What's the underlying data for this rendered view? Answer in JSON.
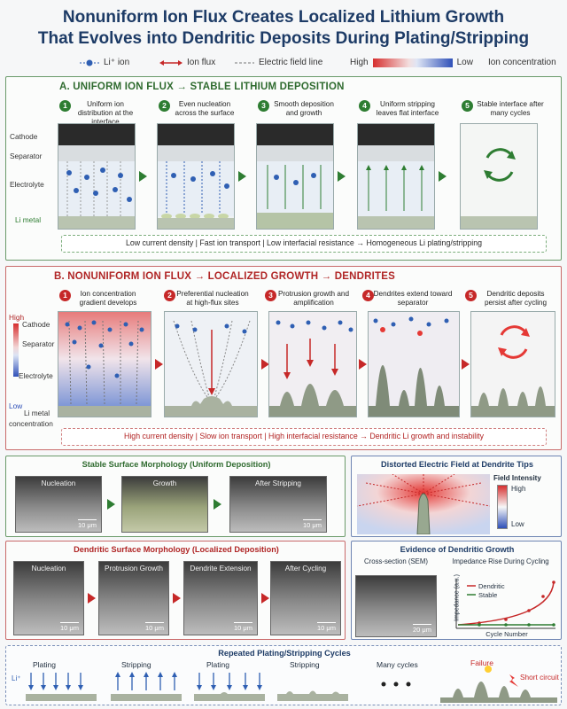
{
  "title": {
    "line1": "Nonuniform Ion Flux Creates Localized Lithium Growth",
    "line2": "That Evolves into Dendritic Deposits During Plating/Stripping"
  },
  "legend": {
    "li_ion": "Li⁺ ion",
    "ion_flux": "Ion flux",
    "field_line": "Electric field line",
    "high": "High",
    "low": "Low",
    "ion_concentration": "Ion concentration"
  },
  "section_a": {
    "title": "A. UNIFORM ION FLUX → STABLE LITHIUM DEPOSITION",
    "side_labels": [
      "Cathode",
      "Separator",
      "Electrolyte",
      "Li metal"
    ],
    "steps": [
      {
        "num": "1",
        "text": "Uniform ion distribution at the interface"
      },
      {
        "num": "2",
        "text": "Even nucleation across the surface"
      },
      {
        "num": "3",
        "text": "Smooth deposition and growth"
      },
      {
        "num": "4",
        "text": "Uniform stripping leaves flat interface"
      },
      {
        "num": "5",
        "text": "Stable interface after many cycles"
      }
    ],
    "footer": "Low current density  |  Fast ion transport  |  Low interfacial resistance  →  Homogeneous Li plating/stripping"
  },
  "section_b": {
    "title": "B. NONUNIFORM ION FLUX → LOCALIZED GROWTH → DENDRITES",
    "side_labels": [
      "High",
      "Cathode",
      "Separator",
      "Electrolyte",
      "Low",
      "Li metal",
      "concentration"
    ],
    "steps": [
      {
        "num": "1",
        "text": "Ion concentration gradient develops"
      },
      {
        "num": "2",
        "text": "Preferential nucleation at high-flux sites"
      },
      {
        "num": "3",
        "text": "Protrusion growth and amplification"
      },
      {
        "num": "4",
        "text": "Dendrites extend toward separator"
      },
      {
        "num": "5",
        "text": "Dendritic deposits persist after cycling"
      }
    ],
    "footer": "High current density  |  Slow ion transport  |  High interfacial resistance  →  Dendritic Li growth and instability"
  },
  "stable_morph": {
    "title": "Stable Surface Morphology (Uniform Deposition)",
    "images": [
      {
        "caption": "Nucleation",
        "scale": "10 μm"
      },
      {
        "caption": "Growth",
        "scale": ""
      },
      {
        "caption": "After Stripping",
        "scale": "10 μm"
      }
    ]
  },
  "dendritic_morph": {
    "title": "Dendritic Surface Morphology (Localized Deposition)",
    "images": [
      {
        "caption": "Nucleation",
        "scale": "10 μm"
      },
      {
        "caption": "Protrusion Growth",
        "scale": "10 μm"
      },
      {
        "caption": "Dendrite Extension",
        "scale": "10 μm"
      },
      {
        "caption": "After Cycling",
        "scale": "10 μm"
      }
    ]
  },
  "field_panel": {
    "title": "Distorted Electric Field at Dendrite Tips",
    "scale_title": "Field Intensity",
    "high": "High",
    "low": "Low"
  },
  "evidence": {
    "title": "Evidence of Dendritic Growth",
    "sem_title": "Cross-section (SEM)",
    "sem_scale": "20 μm",
    "chart_title": "Impedance Rise During Cycling",
    "ylabel": "Impedance (a.u.)",
    "xlabel": "Cycle Number",
    "series_dendritic": "Dendritic",
    "series_stable": "Stable"
  },
  "cycles": {
    "title": "Repeated Plating/Stripping Cycles",
    "labels": [
      "Plating",
      "Stripping",
      "Plating",
      "Stripping",
      "Many cycles"
    ],
    "li_label": "Li⁺",
    "failure": "Failure",
    "short_circuit": "Short circuit"
  },
  "colors": {
    "green": "#2e7d32",
    "red": "#c62828",
    "navy": "#1d3b66",
    "ion_blue": "#2f5fb3"
  }
}
